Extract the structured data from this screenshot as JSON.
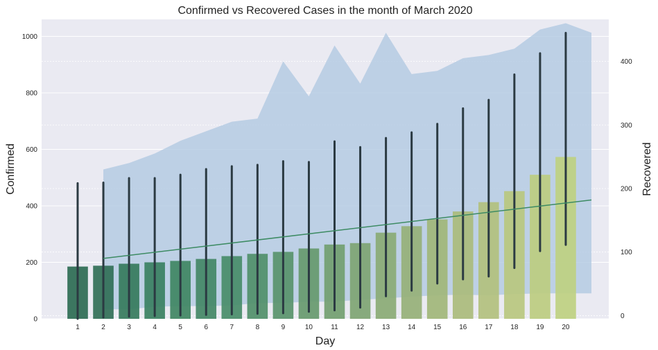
{
  "chart_data": {
    "type": "bar",
    "title": "Confirmed vs Recovered Cases in the month of March 2020",
    "xlabel": "Day",
    "ylabel": "Confirmed",
    "y2label": "Recovered",
    "categories": [
      "1",
      "2",
      "3",
      "4",
      "5",
      "6",
      "7",
      "8",
      "9",
      "10",
      "11",
      "12",
      "13",
      "14",
      "15",
      "16",
      "17",
      "18",
      "19",
      "20"
    ],
    "ylim": [
      0,
      1060
    ],
    "y2lim": [
      -5,
      466
    ],
    "yticks": [
      0,
      200,
      400,
      600,
      800,
      1000
    ],
    "y2ticks": [
      0,
      100,
      200,
      300,
      400
    ],
    "grid": true,
    "background": "#eaeaf2",
    "series": [
      {
        "name": "",
        "kind": "bar",
        "axis": "left",
        "values": [
          185,
          188,
          195,
          200,
          205,
          212,
          222,
          230,
          237,
          249,
          263,
          268,
          305,
          328,
          352,
          380,
          413,
          452,
          510,
          573
        ],
        "colors": [
          "#2d6b54",
          "#316f57",
          "#357a5c",
          "#3a8062",
          "#3f8563",
          "#438766",
          "#488c69",
          "#508f6a",
          "#58936b",
          "#66996e",
          "#729e70",
          "#7ea473",
          "#8aaa75",
          "#96b078",
          "#a1b67a",
          "#aabb7c",
          "#b2c07e",
          "#b9c77f",
          "#bccc80",
          "#bed081"
        ]
      },
      {
        "name": "",
        "kind": "errorbar",
        "axis": "left",
        "low": [
          0,
          5,
          8,
          10,
          12,
          14,
          16,
          18,
          20,
          25,
          30,
          40,
          80,
          100,
          125,
          140,
          150,
          180,
          240,
          262
        ],
        "high": [
          480,
          482,
          498,
          498,
          510,
          530,
          540,
          545,
          558,
          555,
          628,
          608,
          640,
          660,
          690,
          745,
          775,
          865,
          940,
          1012
        ],
        "color": "#2b3a42"
      },
      {
        "name": "",
        "kind": "line",
        "axis": "right",
        "x": [
          "2",
          "21"
        ],
        "values": [
          90,
          182
        ],
        "color": "#3d8b63"
      },
      {
        "name": "",
        "kind": "area-band",
        "axis": "right",
        "x": [
          "2",
          "3",
          "4",
          "5",
          "6",
          "7",
          "8",
          "9",
          "10",
          "11",
          "12",
          "13",
          "14",
          "15",
          "16",
          "17",
          "18",
          "19",
          "20",
          "21"
        ],
        "low": [
          10,
          10,
          14,
          15,
          15,
          16,
          20,
          20,
          22,
          22,
          25,
          27,
          30,
          32,
          33,
          32,
          34,
          35,
          35,
          35
        ],
        "high": [
          230,
          240,
          255,
          275,
          290,
          305,
          310,
          400,
          345,
          425,
          365,
          445,
          380,
          385,
          405,
          410,
          420,
          450,
          460,
          445
        ],
        "color": "#b0c8e2"
      }
    ]
  }
}
